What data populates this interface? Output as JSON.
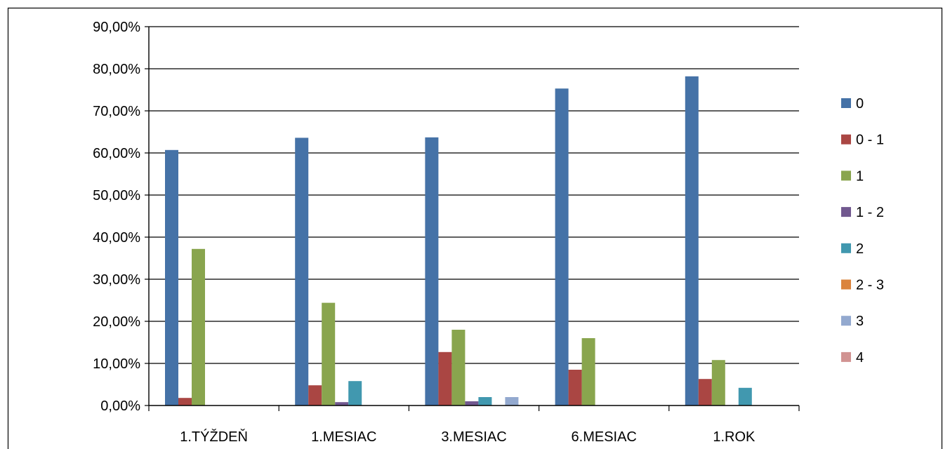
{
  "chart_data": {
    "type": "bar",
    "title": "",
    "xlabel": "",
    "ylabel": "",
    "categories": [
      "1.TÝŽDEŇ",
      "1.MESIAC",
      "3.MESIAC",
      "6.MESIAC",
      "1.ROK"
    ],
    "ylim": [
      0,
      90
    ],
    "yticks": [
      0,
      10,
      20,
      30,
      40,
      50,
      60,
      70,
      80,
      90
    ],
    "ytick_labels": [
      "0,00%",
      "10,00%",
      "20,00%",
      "30,00%",
      "40,00%",
      "50,00%",
      "60,00%",
      "70,00%",
      "80,00%",
      "90,00%"
    ],
    "grid": true,
    "legend_position": "right",
    "series": [
      {
        "name": "0",
        "color": "#4572A7",
        "values": [
          60.7,
          63.6,
          63.7,
          75.3,
          78.2
        ]
      },
      {
        "name": "0 - 1",
        "color": "#AA4643",
        "values": [
          1.8,
          4.8,
          12.7,
          8.5,
          6.3
        ]
      },
      {
        "name": "1",
        "color": "#89A54E",
        "values": [
          37.2,
          24.4,
          18.0,
          16.0,
          10.8
        ]
      },
      {
        "name": "1 - 2",
        "color": "#71588F",
        "values": [
          0,
          0.8,
          1.0,
          0,
          0
        ]
      },
      {
        "name": "2",
        "color": "#4198AF",
        "values": [
          0,
          5.8,
          2.0,
          0,
          4.2
        ]
      },
      {
        "name": "2 - 3",
        "color": "#DB843D",
        "values": [
          0,
          0,
          0,
          0,
          0
        ]
      },
      {
        "name": "3",
        "color": "#93A9CF",
        "values": [
          0,
          0,
          2.0,
          0,
          0
        ]
      },
      {
        "name": "4",
        "color": "#D19392",
        "values": [
          0,
          0,
          0,
          0,
          0
        ]
      }
    ]
  }
}
